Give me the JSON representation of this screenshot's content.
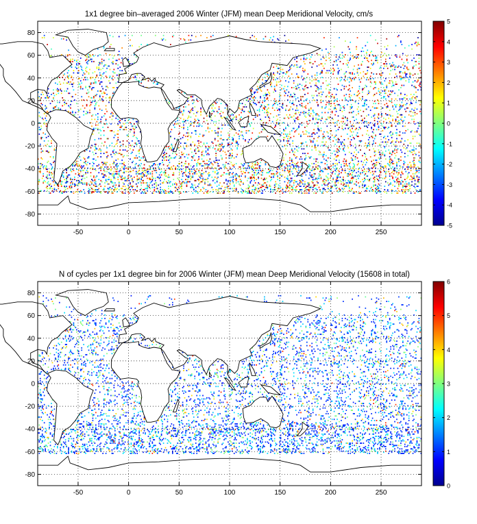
{
  "chart_data": [
    {
      "type": "heatmap",
      "title": "1x1 degree bin–averaged 2006 Winter (JFM) mean Deep Meridional Velocity, cm/s",
      "xlabel": "",
      "ylabel": "",
      "xlim": [
        -90,
        290
      ],
      "ylim": [
        -90,
        90
      ],
      "xticks": [
        -50,
        0,
        50,
        100,
        150,
        200,
        250
      ],
      "yticks": [
        -80,
        -60,
        -40,
        -20,
        0,
        20,
        40,
        60,
        80
      ],
      "grid": true,
      "colormap": "jet",
      "colorbar": {
        "min": -5,
        "max": 5,
        "ticks": [
          -5,
          -4,
          -3,
          -2,
          -1,
          0,
          1,
          2,
          3,
          4,
          5
        ],
        "placement": "right"
      }
    },
    {
      "type": "heatmap",
      "title": "N of cycles per 1x1 degree bin for 2006 Winter (JFM) mean Deep Meridional Velocity (15608 in total)",
      "xlabel": "",
      "ylabel": "",
      "xlim": [
        -90,
        290
      ],
      "ylim": [
        -90,
        90
      ],
      "xticks": [
        -50,
        0,
        50,
        100,
        150,
        200,
        250
      ],
      "yticks": [
        -80,
        -60,
        -40,
        -20,
        0,
        20,
        40,
        60,
        80
      ],
      "grid": true,
      "colormap": "jet",
      "colorbar": {
        "min": 0,
        "max": 6,
        "ticks": [
          0,
          1,
          2,
          3,
          4,
          5,
          6
        ],
        "placement": "right"
      }
    }
  ]
}
